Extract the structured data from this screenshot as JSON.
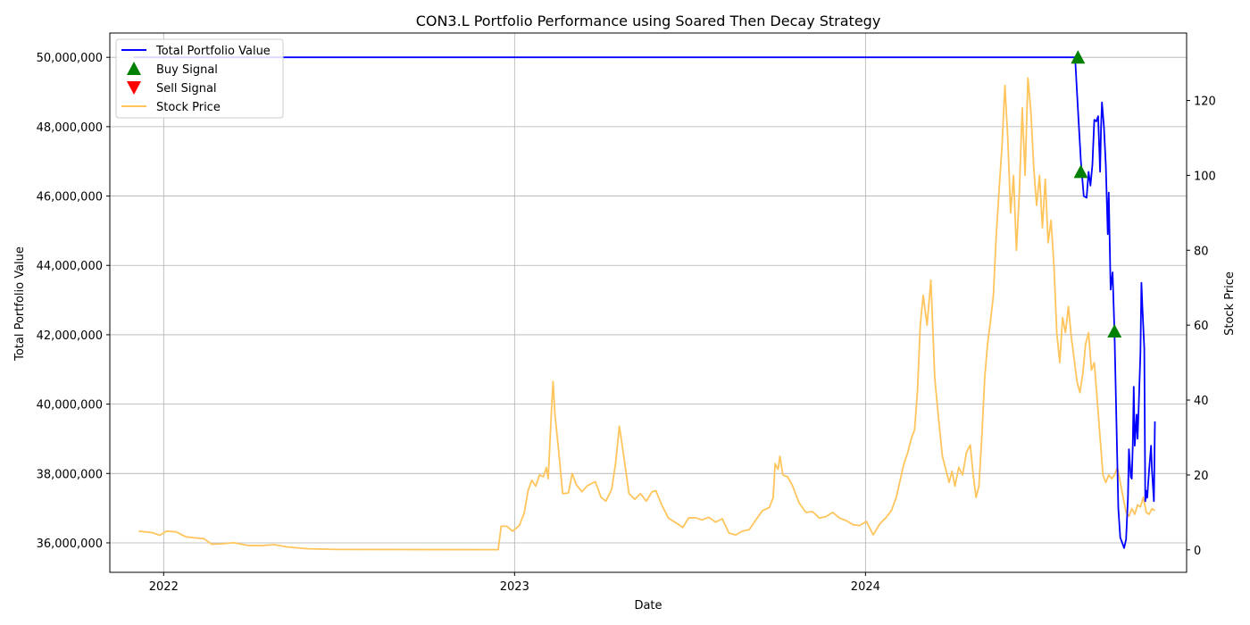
{
  "chart_data": {
    "type": "line",
    "title": "CON3.L Portfolio Performance using Soared Then Decay Strategy",
    "xlabel": "Date",
    "ylabel_left": "Total Portfolio Value",
    "ylabel_right": "Stock Price",
    "x_axis": {
      "range": [
        "2021-11-06",
        "2024-11-30"
      ],
      "ticks": [
        "2022-01-01",
        "2023-01-01",
        "2024-01-01"
      ],
      "tick_labels": [
        "2022",
        "2023",
        "2024"
      ]
    },
    "y_left": {
      "range": [
        35150000,
        50700000
      ],
      "ticks": [
        36000000,
        38000000,
        40000000,
        42000000,
        44000000,
        46000000,
        48000000,
        50000000
      ],
      "tick_labels": [
        "36,000,000",
        "38,000,000",
        "40,000,000",
        "42,000,000",
        "44,000,000",
        "46,000,000",
        "48,000,000",
        "50,000,000"
      ]
    },
    "y_right": {
      "range": [
        -6,
        138
      ],
      "ticks": [
        0,
        20,
        40,
        60,
        80,
        100,
        120
      ],
      "tick_labels": [
        "0",
        "20",
        "40",
        "60",
        "80",
        "100",
        "120"
      ]
    },
    "grid": true,
    "legend_position": "top-left",
    "legend": [
      "Total Portfolio Value",
      "Buy Signal",
      "Sell Signal",
      "Stock Price"
    ],
    "colors": {
      "portfolio": "#0000ff",
      "buy": "#008000",
      "sell": "#ff0000",
      "stock": "#ffc55c"
    },
    "series": [
      {
        "name": "Total Portfolio Value",
        "axis": "left",
        "points": [
          [
            "2021-12-01",
            50000000
          ],
          [
            "2024-08-06",
            50000000
          ],
          [
            "2024-08-09",
            48500000
          ],
          [
            "2024-08-12",
            47000000
          ],
          [
            "2024-08-15",
            46000000
          ],
          [
            "2024-08-18",
            45950000
          ],
          [
            "2024-08-20",
            46700000
          ],
          [
            "2024-08-22",
            46300000
          ],
          [
            "2024-08-24",
            46900000
          ],
          [
            "2024-08-26",
            48200000
          ],
          [
            "2024-08-28",
            48150000
          ],
          [
            "2024-08-30",
            48300000
          ],
          [
            "2024-09-01",
            46700000
          ],
          [
            "2024-09-02",
            48000000
          ],
          [
            "2024-09-03",
            48700000
          ],
          [
            "2024-09-05",
            48000000
          ],
          [
            "2024-09-07",
            46900000
          ],
          [
            "2024-09-09",
            44900000
          ],
          [
            "2024-09-10",
            46100000
          ],
          [
            "2024-09-12",
            43300000
          ],
          [
            "2024-09-14",
            43800000
          ],
          [
            "2024-09-16",
            42100000
          ],
          [
            "2024-09-18",
            39500000
          ],
          [
            "2024-09-20",
            37000000
          ],
          [
            "2024-09-22",
            36150000
          ],
          [
            "2024-09-24",
            36000000
          ],
          [
            "2024-09-26",
            35850000
          ],
          [
            "2024-09-28",
            36100000
          ],
          [
            "2024-09-30",
            37300000
          ],
          [
            "2024-10-01",
            38700000
          ],
          [
            "2024-10-03",
            37900000
          ],
          [
            "2024-10-04",
            37850000
          ],
          [
            "2024-10-05",
            38800000
          ],
          [
            "2024-10-06",
            40500000
          ],
          [
            "2024-10-07",
            38800000
          ],
          [
            "2024-10-09",
            39700000
          ],
          [
            "2024-10-10",
            39000000
          ],
          [
            "2024-10-11",
            39800000
          ],
          [
            "2024-10-13",
            41500000
          ],
          [
            "2024-10-14",
            43500000
          ],
          [
            "2024-10-15",
            42800000
          ],
          [
            "2024-10-17",
            41600000
          ],
          [
            "2024-10-18",
            37200000
          ],
          [
            "2024-10-19",
            37500000
          ],
          [
            "2024-10-20",
            37300000
          ],
          [
            "2024-10-22",
            38100000
          ],
          [
            "2024-10-24",
            38800000
          ],
          [
            "2024-10-25",
            38100000
          ],
          [
            "2024-10-27",
            37200000
          ],
          [
            "2024-10-28",
            39500000
          ]
        ]
      },
      {
        "name": "Buy Signal",
        "axis": "left",
        "marker": "triangle-up",
        "points": [
          [
            "2024-08-09",
            50000000
          ],
          [
            "2024-08-12",
            46700000
          ],
          [
            "2024-09-16",
            42100000
          ]
        ]
      },
      {
        "name": "Sell Signal",
        "axis": "left",
        "marker": "triangle-down",
        "points": []
      },
      {
        "name": "Stock Price",
        "axis": "right",
        "points": [
          [
            "2021-12-06",
            5
          ],
          [
            "2021-12-20",
            4.6
          ],
          [
            "2021-12-28",
            3.9
          ],
          [
            "2022-01-04",
            5
          ],
          [
            "2022-01-14",
            4.8
          ],
          [
            "2022-01-24",
            3.5
          ],
          [
            "2022-02-02",
            3.2
          ],
          [
            "2022-02-12",
            3.0
          ],
          [
            "2022-02-20",
            1.5
          ],
          [
            "2022-03-01",
            1.6
          ],
          [
            "2022-03-15",
            1.9
          ],
          [
            "2022-03-29",
            1.2
          ],
          [
            "2022-04-12",
            1.1
          ],
          [
            "2022-04-26",
            1.4
          ],
          [
            "2022-05-09",
            0.8
          ],
          [
            "2022-05-31",
            0.3
          ],
          [
            "2022-07-01",
            0.1
          ],
          [
            "2022-12-15",
            0.05
          ],
          [
            "2022-12-18",
            6.3
          ],
          [
            "2022-12-24",
            6.3
          ],
          [
            "2022-12-30",
            5.0
          ],
          [
            "2023-01-06",
            6.5
          ],
          [
            "2023-01-11",
            9.8
          ],
          [
            "2023-01-15",
            15.8
          ],
          [
            "2023-01-19",
            18.6
          ],
          [
            "2023-01-23",
            17.0
          ],
          [
            "2023-01-27",
            20.0
          ],
          [
            "2023-01-31",
            19.5
          ],
          [
            "2023-02-03",
            22.0
          ],
          [
            "2023-02-05",
            19.0
          ],
          [
            "2023-02-08",
            35.0
          ],
          [
            "2023-02-10",
            45.0
          ],
          [
            "2023-02-12",
            36.0
          ],
          [
            "2023-02-16",
            26.0
          ],
          [
            "2023-02-20",
            15.0
          ],
          [
            "2023-02-26",
            15.2
          ],
          [
            "2023-03-02",
            20.4
          ],
          [
            "2023-03-06",
            17.5
          ],
          [
            "2023-03-12",
            15.5
          ],
          [
            "2023-03-18",
            17.2
          ],
          [
            "2023-03-26",
            18.2
          ],
          [
            "2023-04-01",
            14.0
          ],
          [
            "2023-04-06",
            13.0
          ],
          [
            "2023-04-12",
            16.2
          ],
          [
            "2023-04-16",
            23.0
          ],
          [
            "2023-04-20",
            33.0
          ],
          [
            "2023-04-24",
            26.0
          ],
          [
            "2023-04-30",
            15.0
          ],
          [
            "2023-05-06",
            13.5
          ],
          [
            "2023-05-12",
            15.0
          ],
          [
            "2023-05-18",
            13.0
          ],
          [
            "2023-05-24",
            15.5
          ],
          [
            "2023-05-28",
            15.8
          ],
          [
            "2023-06-03",
            12.0
          ],
          [
            "2023-06-10",
            8.5
          ],
          [
            "2023-06-18",
            7.2
          ],
          [
            "2023-06-25",
            6.0
          ],
          [
            "2023-07-01",
            8.5
          ],
          [
            "2023-07-08",
            8.6
          ],
          [
            "2023-07-15",
            8.0
          ],
          [
            "2023-07-22",
            8.7
          ],
          [
            "2023-07-29",
            7.4
          ],
          [
            "2023-08-05",
            8.3
          ],
          [
            "2023-08-12",
            4.5
          ],
          [
            "2023-08-19",
            4.0
          ],
          [
            "2023-08-26",
            5.0
          ],
          [
            "2023-09-02",
            5.4
          ],
          [
            "2023-09-09",
            8.0
          ],
          [
            "2023-09-16",
            10.5
          ],
          [
            "2023-09-23",
            11.3
          ],
          [
            "2023-09-27",
            14.0
          ],
          [
            "2023-09-29",
            23.0
          ],
          [
            "2023-10-02",
            21.5
          ],
          [
            "2023-10-04",
            25.0
          ],
          [
            "2023-10-07",
            20.0
          ],
          [
            "2023-10-12",
            19.5
          ],
          [
            "2023-10-17",
            17.2
          ],
          [
            "2023-10-24",
            12.5
          ],
          [
            "2023-10-31",
            10.0
          ],
          [
            "2023-11-07",
            10.2
          ],
          [
            "2023-11-14",
            8.5
          ],
          [
            "2023-11-21",
            8.9
          ],
          [
            "2023-11-28",
            10.0
          ],
          [
            "2023-12-05",
            8.5
          ],
          [
            "2023-12-12",
            7.8
          ],
          [
            "2023-12-19",
            6.7
          ],
          [
            "2023-12-26",
            6.5
          ],
          [
            "2024-01-02",
            7.6
          ],
          [
            "2024-01-09",
            4.0
          ],
          [
            "2024-01-16",
            7.0
          ],
          [
            "2024-01-22",
            8.5
          ],
          [
            "2024-01-28",
            10.5
          ],
          [
            "2024-02-02",
            14.0
          ],
          [
            "2024-02-06",
            18.5
          ],
          [
            "2024-02-10",
            23.0
          ],
          [
            "2024-02-14",
            26.0
          ],
          [
            "2024-02-18",
            30.0
          ],
          [
            "2024-02-21",
            32.0
          ],
          [
            "2024-02-24",
            42.0
          ],
          [
            "2024-02-27",
            60.0
          ],
          [
            "2024-03-01",
            68.0
          ],
          [
            "2024-03-05",
            60.0
          ],
          [
            "2024-03-09",
            72.0
          ],
          [
            "2024-03-13",
            46.0
          ],
          [
            "2024-03-17",
            35.0
          ],
          [
            "2024-03-21",
            25.0
          ],
          [
            "2024-03-25",
            21.0
          ],
          [
            "2024-03-28",
            18.0
          ],
          [
            "2024-03-31",
            21.0
          ],
          [
            "2024-04-03",
            17.0
          ],
          [
            "2024-04-07",
            22.0
          ],
          [
            "2024-04-11",
            20.0
          ],
          [
            "2024-04-15",
            26.0
          ],
          [
            "2024-04-19",
            28.0
          ],
          [
            "2024-04-22",
            20.0
          ],
          [
            "2024-04-25",
            14.0
          ],
          [
            "2024-04-28",
            17.0
          ],
          [
            "2024-05-01",
            30.0
          ],
          [
            "2024-05-04",
            46.0
          ],
          [
            "2024-05-07",
            55.0
          ],
          [
            "2024-05-10",
            61.0
          ],
          [
            "2024-05-13",
            68.0
          ],
          [
            "2024-05-16",
            84.0
          ],
          [
            "2024-05-19",
            96.0
          ],
          [
            "2024-05-22",
            108.0
          ],
          [
            "2024-05-25",
            124.0
          ],
          [
            "2024-05-28",
            110.0
          ],
          [
            "2024-05-31",
            90.0
          ],
          [
            "2024-06-03",
            100.0
          ],
          [
            "2024-06-06",
            80.0
          ],
          [
            "2024-06-09",
            95.0
          ],
          [
            "2024-06-12",
            118.0
          ],
          [
            "2024-06-15",
            100.0
          ],
          [
            "2024-06-18",
            126.0
          ],
          [
            "2024-06-21",
            117.0
          ],
          [
            "2024-06-24",
            102.0
          ],
          [
            "2024-06-27",
            92.0
          ],
          [
            "2024-06-30",
            100.0
          ],
          [
            "2024-07-03",
            86.0
          ],
          [
            "2024-07-06",
            99.0
          ],
          [
            "2024-07-09",
            82.0
          ],
          [
            "2024-07-12",
            88.0
          ],
          [
            "2024-07-15",
            76.0
          ],
          [
            "2024-07-18",
            58.0
          ],
          [
            "2024-07-21",
            50.0
          ],
          [
            "2024-07-24",
            62.0
          ],
          [
            "2024-07-27",
            58.0
          ],
          [
            "2024-07-30",
            65.0
          ],
          [
            "2024-08-02",
            57.0
          ],
          [
            "2024-08-05",
            51.0
          ],
          [
            "2024-08-08",
            45.0
          ],
          [
            "2024-08-11",
            42.0
          ],
          [
            "2024-08-14",
            47.0
          ],
          [
            "2024-08-17",
            55.0
          ],
          [
            "2024-08-20",
            58.0
          ],
          [
            "2024-08-23",
            48.0
          ],
          [
            "2024-08-26",
            50.0
          ],
          [
            "2024-08-29",
            40.0
          ],
          [
            "2024-09-01",
            30.0
          ],
          [
            "2024-09-04",
            20.0
          ],
          [
            "2024-09-07",
            18.0
          ],
          [
            "2024-09-10",
            20.0
          ],
          [
            "2024-09-13",
            19.0
          ],
          [
            "2024-09-16",
            20.0
          ],
          [
            "2024-09-19",
            22.0
          ],
          [
            "2024-09-22",
            18.0
          ],
          [
            "2024-09-25",
            14.0
          ],
          [
            "2024-09-28",
            10.0
          ],
          [
            "2024-10-01",
            9.0
          ],
          [
            "2024-10-04",
            11.0
          ],
          [
            "2024-10-07",
            9.5
          ],
          [
            "2024-10-10",
            12.0
          ],
          [
            "2024-10-13",
            11.5
          ],
          [
            "2024-10-16",
            14.0
          ],
          [
            "2024-10-19",
            10.0
          ],
          [
            "2024-10-22",
            9.5
          ],
          [
            "2024-10-25",
            11.0
          ],
          [
            "2024-10-28",
            10.5
          ]
        ]
      }
    ]
  }
}
